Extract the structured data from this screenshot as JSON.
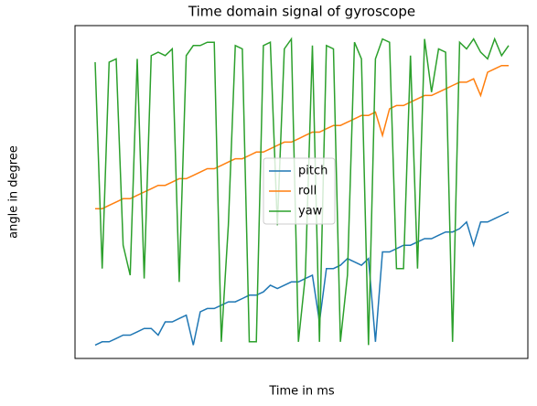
{
  "chart_data": {
    "type": "line",
    "title": "Time domain signal of gyroscope",
    "xlabel": "Time in ms",
    "ylabel": "angle in degree",
    "ylim": [
      0,
      1
    ],
    "legend": "center",
    "series": [
      {
        "name": "pitch",
        "color": "#1f77b4",
        "values": [
          0.04,
          0.05,
          0.05,
          0.06,
          0.07,
          0.07,
          0.08,
          0.09,
          0.09,
          0.07,
          0.11,
          0.11,
          0.12,
          0.13,
          0.04,
          0.14,
          0.15,
          0.15,
          0.16,
          0.17,
          0.17,
          0.18,
          0.19,
          0.19,
          0.2,
          0.22,
          0.21,
          0.22,
          0.23,
          0.23,
          0.24,
          0.25,
          0.11,
          0.27,
          0.27,
          0.28,
          0.3,
          0.29,
          0.28,
          0.3,
          0.05,
          0.32,
          0.32,
          0.33,
          0.34,
          0.34,
          0.35,
          0.36,
          0.36,
          0.37,
          0.38,
          0.38,
          0.39,
          0.41,
          0.34,
          0.41,
          0.41,
          0.42,
          0.43,
          0.44
        ]
      },
      {
        "name": "roll",
        "color": "#ff7f0e",
        "values": [
          0.45,
          0.45,
          0.46,
          0.47,
          0.48,
          0.48,
          0.49,
          0.5,
          0.51,
          0.52,
          0.52,
          0.53,
          0.54,
          0.54,
          0.55,
          0.56,
          0.57,
          0.57,
          0.58,
          0.59,
          0.6,
          0.6,
          0.61,
          0.62,
          0.62,
          0.63,
          0.64,
          0.65,
          0.65,
          0.66,
          0.67,
          0.68,
          0.68,
          0.69,
          0.7,
          0.7,
          0.71,
          0.72,
          0.73,
          0.73,
          0.74,
          0.67,
          0.75,
          0.76,
          0.76,
          0.77,
          0.78,
          0.79,
          0.79,
          0.8,
          0.81,
          0.82,
          0.83,
          0.83,
          0.84,
          0.79,
          0.86,
          0.87,
          0.88,
          0.88
        ]
      },
      {
        "name": "yaw",
        "color": "#2ca02c",
        "values": [
          0.89,
          0.27,
          0.89,
          0.9,
          0.34,
          0.25,
          0.9,
          0.24,
          0.91,
          0.92,
          0.91,
          0.93,
          0.23,
          0.91,
          0.94,
          0.94,
          0.95,
          0.95,
          0.05,
          0.4,
          0.94,
          0.93,
          0.05,
          0.05,
          0.94,
          0.95,
          0.4,
          0.93,
          0.96,
          0.05,
          0.25,
          0.94,
          0.05,
          0.94,
          0.93,
          0.05,
          0.25,
          0.95,
          0.9,
          0.04,
          0.9,
          0.96,
          0.95,
          0.27,
          0.27,
          0.91,
          0.27,
          0.96,
          0.8,
          0.93,
          0.92,
          0.05,
          0.95,
          0.93,
          0.96,
          0.92,
          0.9,
          0.96,
          0.91,
          0.94
        ]
      }
    ]
  }
}
